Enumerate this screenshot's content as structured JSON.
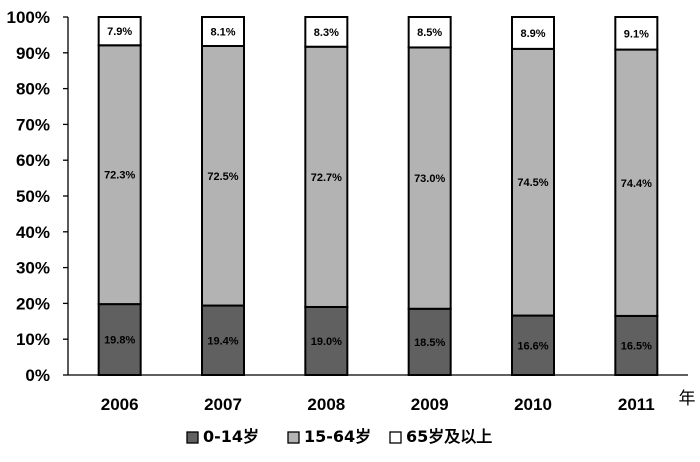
{
  "chart_data": {
    "type": "bar",
    "stacked": true,
    "categories": [
      "2006",
      "2007",
      "2008",
      "2009",
      "2010",
      "2011"
    ],
    "series": [
      {
        "name": "0-14岁",
        "values": [
          19.8,
          19.4,
          19.0,
          18.5,
          16.6,
          16.5
        ],
        "labels": [
          "19.8%",
          "19.4%",
          "19.0%",
          "18.5%",
          "16.6%",
          "16.5%"
        ],
        "color": "#606060"
      },
      {
        "name": "15-64岁",
        "values": [
          72.3,
          72.5,
          72.7,
          73.0,
          74.5,
          74.4
        ],
        "labels": [
          "72.3%",
          "72.5%",
          "72.7%",
          "73.0%",
          "74.5%",
          "74.4%"
        ],
        "color": "#b3b3b3"
      },
      {
        "name": "65岁及以上",
        "values": [
          7.9,
          8.1,
          8.3,
          8.5,
          8.9,
          9.1
        ],
        "labels": [
          "7.9%",
          "8.1%",
          "8.3%",
          "8.5%",
          "8.9%",
          "9.1%"
        ],
        "color": "#ffffff"
      }
    ],
    "ylim": [
      0,
      100
    ],
    "y_ticks": [
      "0%",
      "10%",
      "20%",
      "30%",
      "40%",
      "50%",
      "60%",
      "70%",
      "80%",
      "90%",
      "100%"
    ],
    "xlabel": "年",
    "ylabel": "",
    "title": "",
    "grid": false,
    "legend_position": "bottom"
  }
}
